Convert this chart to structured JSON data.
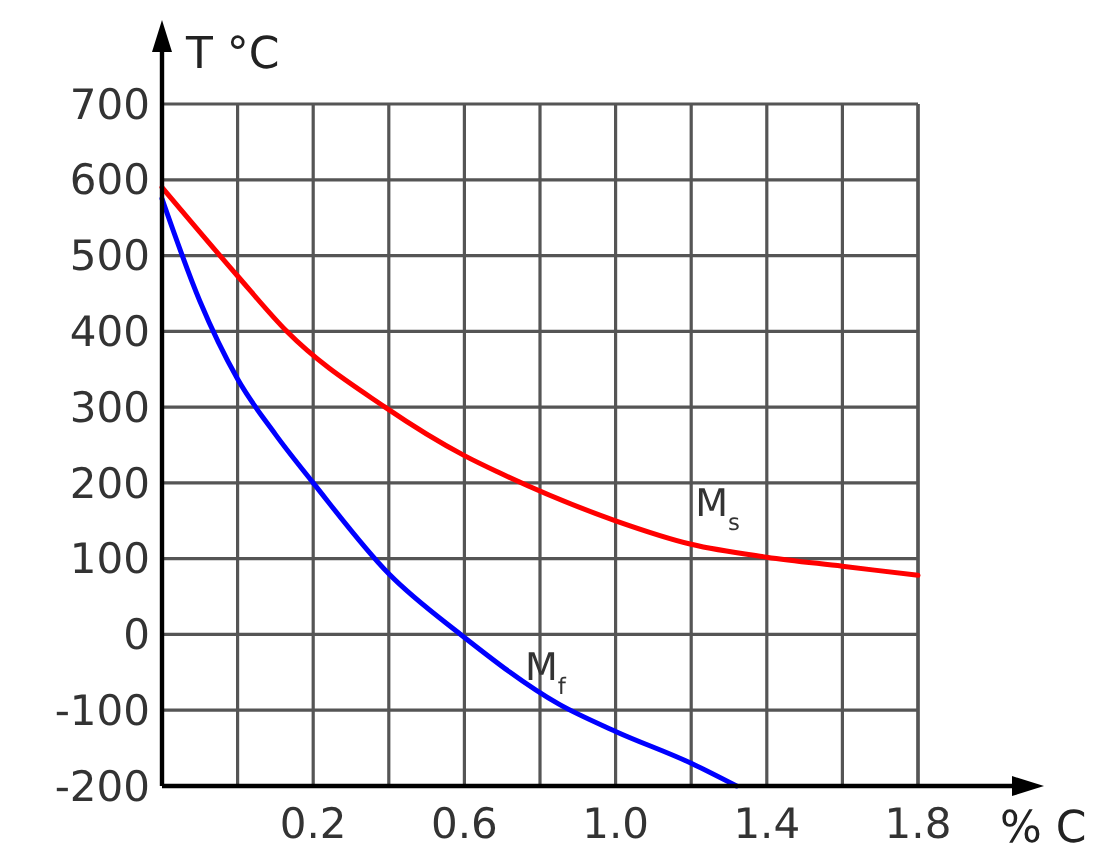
{
  "chart_data": {
    "type": "line",
    "xlabel": "% C",
    "ylabel": "T °C",
    "xlim": [
      -0.2,
      1.8
    ],
    "ylim": [
      -200,
      700
    ],
    "xticks": [
      {
        "value": 0,
        "label": null
      },
      0.2,
      {
        "value": 0.4,
        "label": null
      },
      0.6,
      {
        "value": 0.8,
        "label": null
      },
      {
        "value": 1,
        "label": "1.0"
      },
      {
        "value": 1.2,
        "label": null
      },
      1.4,
      {
        "value": 1.6,
        "label": null
      },
      1.8
    ],
    "yticks": [
      -200,
      -100,
      0,
      100,
      200,
      300,
      400,
      500,
      600,
      700
    ],
    "grid": true,
    "legend": false,
    "marker": "none",
    "line_style": "solid",
    "series": [
      {
        "name": "M$_{s}$",
        "color": "#ff0000",
        "x": [
          -0.2,
          0.0,
          0.13,
          0.39,
          0.6,
          0.69,
          1.0,
          1.2,
          1.4,
          1.6,
          1.8
        ],
        "values": [
          590,
          473,
          400,
          300,
          236,
          214,
          150,
          119,
          102,
          90,
          78
        ]
      },
      {
        "name": "M$_{f}$",
        "color": "#0000ff",
        "x": [
          -0.2,
          -0.1,
          0.0,
          0.1,
          0.2,
          0.4,
          0.59,
          0.85,
          1.0,
          1.2,
          1.32
        ],
        "values": [
          575,
          440,
          337,
          264,
          200,
          80,
          0,
          -92,
          -128,
          -170,
          -200
        ]
      }
    ]
  }
}
